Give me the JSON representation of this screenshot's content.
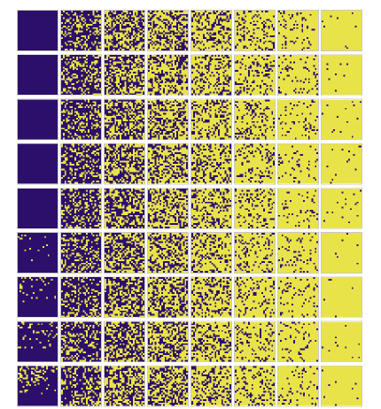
{
  "figure": {
    "rows": 9,
    "cols": 8,
    "cells_per_side": 24,
    "colors": {
      "empty": "#2c0f6b",
      "filled": "#e9e34a",
      "frame": "#c8c8c8",
      "background": "#ffffff"
    },
    "fill_fraction_by_column": [
      0.02,
      0.3,
      0.45,
      0.58,
      0.7,
      0.8,
      0.9,
      0.985
    ],
    "fill_fraction_by_row_first_column": [
      0.0,
      0.0,
      0.0,
      0.0,
      0.0,
      0.02,
      0.07,
      0.11,
      0.2
    ]
  }
}
